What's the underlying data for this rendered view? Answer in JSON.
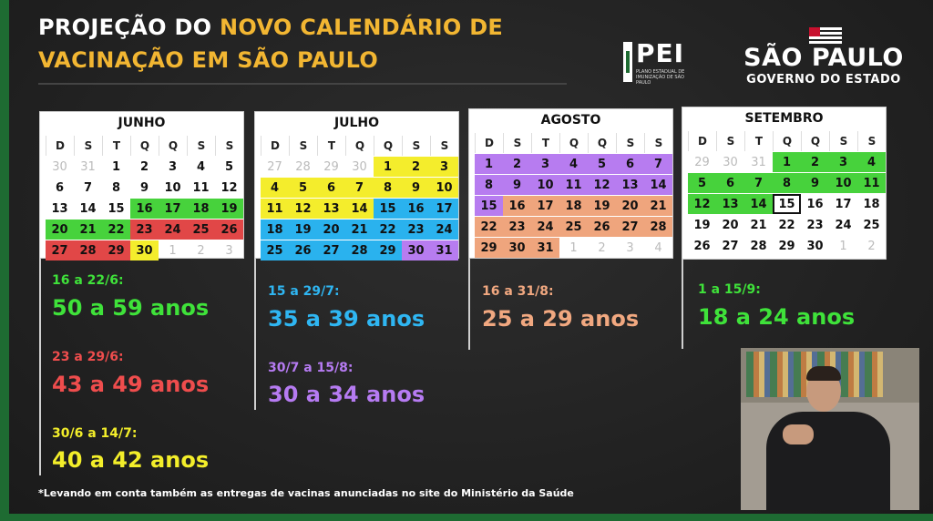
{
  "header": {
    "title_line1_white": "PROJEÇÃO DO ",
    "title_line1_yellow": "NOVO CALENDÁRIO DE",
    "title_line2_yellow": "VACINAÇÃO EM SÃO PAULO"
  },
  "logos": {
    "pei": "PEI",
    "pei_sub": "PLANO ESTADUAL DE IMUNIZAÇÃO DE SÃO PAULO",
    "sp_name": "SÃO PAULO",
    "sp_gov": "GOVERNO DO ESTADO"
  },
  "weekdays": [
    "D",
    "S",
    "T",
    "Q",
    "Q",
    "S",
    "S"
  ],
  "calendars": [
    {
      "month": "JUNHO",
      "cells": [
        {
          "d": "30",
          "c": "o"
        },
        {
          "d": "31",
          "c": "o"
        },
        {
          "d": "1",
          "c": ""
        },
        {
          "d": "2",
          "c": ""
        },
        {
          "d": "3",
          "c": ""
        },
        {
          "d": "4",
          "c": ""
        },
        {
          "d": "5",
          "c": ""
        },
        {
          "d": "6",
          "c": ""
        },
        {
          "d": "7",
          "c": ""
        },
        {
          "d": "8",
          "c": ""
        },
        {
          "d": "9",
          "c": ""
        },
        {
          "d": "10",
          "c": ""
        },
        {
          "d": "11",
          "c": ""
        },
        {
          "d": "12",
          "c": ""
        },
        {
          "d": "13",
          "c": ""
        },
        {
          "d": "14",
          "c": ""
        },
        {
          "d": "15",
          "c": ""
        },
        {
          "d": "16",
          "c": "g"
        },
        {
          "d": "17",
          "c": "g"
        },
        {
          "d": "18",
          "c": "g"
        },
        {
          "d": "19",
          "c": "g"
        },
        {
          "d": "20",
          "c": "g"
        },
        {
          "d": "21",
          "c": "g"
        },
        {
          "d": "22",
          "c": "g"
        },
        {
          "d": "23",
          "c": "r"
        },
        {
          "d": "24",
          "c": "r"
        },
        {
          "d": "25",
          "c": "r"
        },
        {
          "d": "26",
          "c": "r"
        },
        {
          "d": "27",
          "c": "r"
        },
        {
          "d": "28",
          "c": "r"
        },
        {
          "d": "29",
          "c": "r"
        },
        {
          "d": "30",
          "c": "yl"
        },
        {
          "d": "1",
          "c": "o"
        },
        {
          "d": "2",
          "c": "o"
        },
        {
          "d": "3",
          "c": "o"
        }
      ]
    },
    {
      "month": "JULHO",
      "cells": [
        {
          "d": "27",
          "c": "o"
        },
        {
          "d": "28",
          "c": "o"
        },
        {
          "d": "29",
          "c": "o"
        },
        {
          "d": "30",
          "c": "o"
        },
        {
          "d": "1",
          "c": "yl"
        },
        {
          "d": "2",
          "c": "yl"
        },
        {
          "d": "3",
          "c": "yl"
        },
        {
          "d": "4",
          "c": "yl"
        },
        {
          "d": "5",
          "c": "yl"
        },
        {
          "d": "6",
          "c": "yl"
        },
        {
          "d": "7",
          "c": "yl"
        },
        {
          "d": "8",
          "c": "yl"
        },
        {
          "d": "9",
          "c": "yl"
        },
        {
          "d": "10",
          "c": "yl"
        },
        {
          "d": "11",
          "c": "yl"
        },
        {
          "d": "12",
          "c": "yl"
        },
        {
          "d": "13",
          "c": "yl"
        },
        {
          "d": "14",
          "c": "yl"
        },
        {
          "d": "15",
          "c": "b"
        },
        {
          "d": "16",
          "c": "b"
        },
        {
          "d": "17",
          "c": "b"
        },
        {
          "d": "18",
          "c": "b"
        },
        {
          "d": "19",
          "c": "b"
        },
        {
          "d": "20",
          "c": "b"
        },
        {
          "d": "21",
          "c": "b"
        },
        {
          "d": "22",
          "c": "b"
        },
        {
          "d": "23",
          "c": "b"
        },
        {
          "d": "24",
          "c": "b"
        },
        {
          "d": "25",
          "c": "b"
        },
        {
          "d": "26",
          "c": "b"
        },
        {
          "d": "27",
          "c": "b"
        },
        {
          "d": "28",
          "c": "b"
        },
        {
          "d": "29",
          "c": "b"
        },
        {
          "d": "30",
          "c": "p"
        },
        {
          "d": "31",
          "c": "p"
        }
      ]
    },
    {
      "month": "AGOSTO",
      "cells": [
        {
          "d": "1",
          "c": "p"
        },
        {
          "d": "2",
          "c": "p"
        },
        {
          "d": "3",
          "c": "p"
        },
        {
          "d": "4",
          "c": "p"
        },
        {
          "d": "5",
          "c": "p"
        },
        {
          "d": "6",
          "c": "p"
        },
        {
          "d": "7",
          "c": "p"
        },
        {
          "d": "8",
          "c": "p"
        },
        {
          "d": "9",
          "c": "p"
        },
        {
          "d": "10",
          "c": "p"
        },
        {
          "d": "11",
          "c": "p"
        },
        {
          "d": "12",
          "c": "p"
        },
        {
          "d": "13",
          "c": "p"
        },
        {
          "d": "14",
          "c": "p"
        },
        {
          "d": "15",
          "c": "p"
        },
        {
          "d": "16",
          "c": "or"
        },
        {
          "d": "17",
          "c": "or"
        },
        {
          "d": "18",
          "c": "or"
        },
        {
          "d": "19",
          "c": "or"
        },
        {
          "d": "20",
          "c": "or"
        },
        {
          "d": "21",
          "c": "or"
        },
        {
          "d": "22",
          "c": "or"
        },
        {
          "d": "23",
          "c": "or"
        },
        {
          "d": "24",
          "c": "or"
        },
        {
          "d": "25",
          "c": "or"
        },
        {
          "d": "26",
          "c": "or"
        },
        {
          "d": "27",
          "c": "or"
        },
        {
          "d": "28",
          "c": "or"
        },
        {
          "d": "29",
          "c": "or"
        },
        {
          "d": "30",
          "c": "or"
        },
        {
          "d": "31",
          "c": "or"
        },
        {
          "d": "1",
          "c": "o"
        },
        {
          "d": "2",
          "c": "o"
        },
        {
          "d": "3",
          "c": "o"
        },
        {
          "d": "4",
          "c": "o"
        }
      ]
    },
    {
      "month": "SETEMBRO",
      "cells": [
        {
          "d": "29",
          "c": "o"
        },
        {
          "d": "30",
          "c": "o"
        },
        {
          "d": "31",
          "c": "o"
        },
        {
          "d": "1",
          "c": "g"
        },
        {
          "d": "2",
          "c": "g"
        },
        {
          "d": "3",
          "c": "g"
        },
        {
          "d": "4",
          "c": "g"
        },
        {
          "d": "5",
          "c": "g"
        },
        {
          "d": "6",
          "c": "g"
        },
        {
          "d": "7",
          "c": "g"
        },
        {
          "d": "8",
          "c": "g"
        },
        {
          "d": "9",
          "c": "g"
        },
        {
          "d": "10",
          "c": "g"
        },
        {
          "d": "11",
          "c": "g"
        },
        {
          "d": "12",
          "c": "g"
        },
        {
          "d": "13",
          "c": "g"
        },
        {
          "d": "14",
          "c": "g"
        },
        {
          "d": "15",
          "c": "sel"
        },
        {
          "d": "16",
          "c": ""
        },
        {
          "d": "17",
          "c": ""
        },
        {
          "d": "18",
          "c": ""
        },
        {
          "d": "19",
          "c": ""
        },
        {
          "d": "20",
          "c": ""
        },
        {
          "d": "21",
          "c": ""
        },
        {
          "d": "22",
          "c": ""
        },
        {
          "d": "23",
          "c": ""
        },
        {
          "d": "24",
          "c": ""
        },
        {
          "d": "25",
          "c": ""
        },
        {
          "d": "26",
          "c": ""
        },
        {
          "d": "27",
          "c": ""
        },
        {
          "d": "28",
          "c": ""
        },
        {
          "d": "29",
          "c": ""
        },
        {
          "d": "30",
          "c": ""
        },
        {
          "d": "1",
          "c": "o"
        },
        {
          "d": "2",
          "c": "o"
        }
      ]
    }
  ],
  "ranges": {
    "jun_a": {
      "date": "16 a 22/6:",
      "age": "50 a 59 anos"
    },
    "jun_b": {
      "date": "23 a 29/6:",
      "age": "43 a 49 anos"
    },
    "jun_c": {
      "date": "30/6 a 14/7:",
      "age": "40 a 42 anos"
    },
    "jul_a": {
      "date": "15 a 29/7:",
      "age": "35 a 39 anos"
    },
    "jul_b": {
      "date": "30/7 a 15/8:",
      "age": "30 a 34 anos"
    },
    "ago_a": {
      "date": "16 a 31/8:",
      "age": "25 a 29 anos"
    },
    "set_a": {
      "date": "1 a 15/9:",
      "age": "18 a 24 anos"
    }
  },
  "footnote": "*Levando em conta também as entregas de vacinas anunciadas no site do Ministério da Saúde"
}
